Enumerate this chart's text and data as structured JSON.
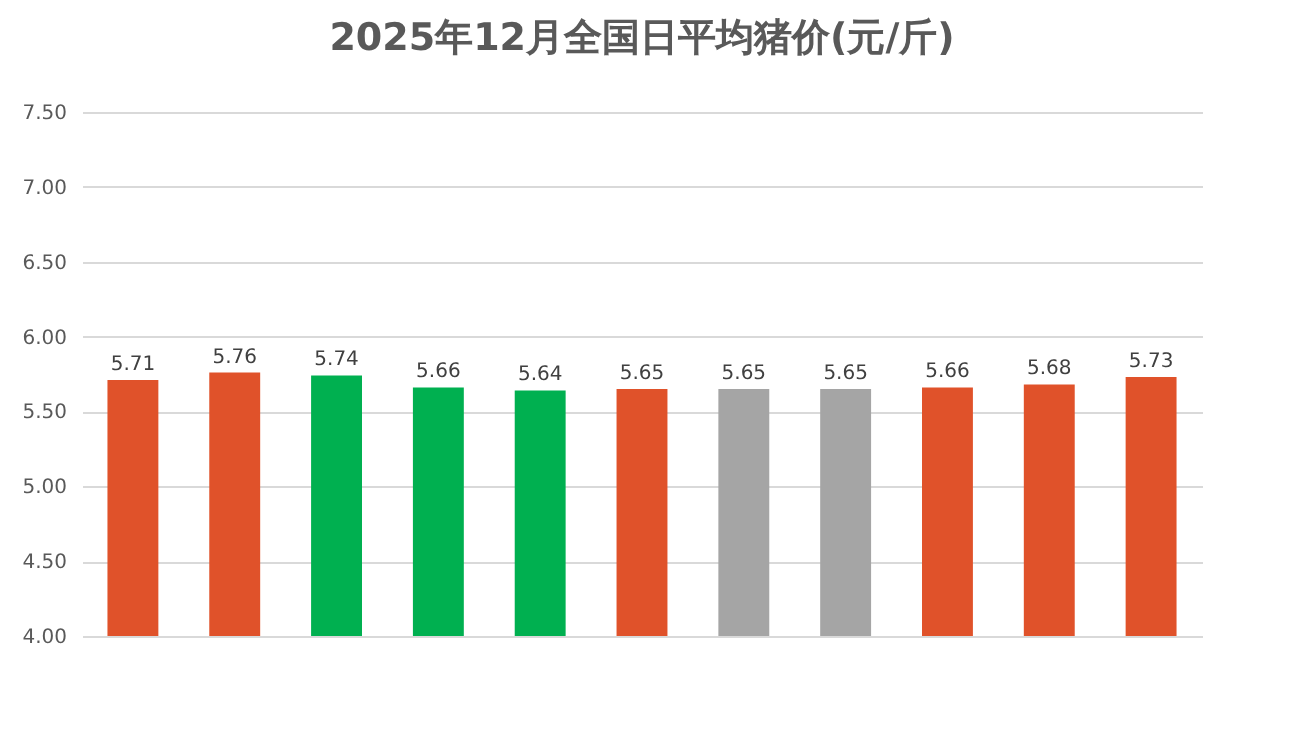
{
  "chart_data": {
    "type": "bar",
    "title": "2025年12月全国日平均猪价(元/斤)",
    "categories": [
      null,
      null,
      null,
      null,
      null,
      null,
      null,
      null,
      null,
      null,
      null
    ],
    "values": [
      5.71,
      5.76,
      5.74,
      5.66,
      5.64,
      5.65,
      5.65,
      5.65,
      5.66,
      5.68,
      5.73
    ],
    "colors": [
      "#e0522a",
      "#e0522a",
      "#00b050",
      "#00b050",
      "#00b050",
      "#e0522a",
      "#a5a5a5",
      "#a5a5a5",
      "#e0522a",
      "#e0522a",
      "#e0522a"
    ],
    "ylim": [
      4,
      7.5
    ],
    "yticks": [
      {
        "value": 4,
        "label": "4.00"
      },
      {
        "value": 4.5,
        "label": "4.50"
      },
      {
        "value": 5,
        "label": "5.00"
      },
      {
        "value": 5.5,
        "label": "5.50"
      },
      {
        "value": 6,
        "label": "6.00"
      },
      {
        "value": 6.5,
        "label": "6.50"
      },
      {
        "value": 7,
        "label": "7.00"
      },
      {
        "value": 7.5,
        "label": "7.50"
      }
    ],
    "grid": "y",
    "data_labels": true,
    "tick_labels": "y"
  }
}
